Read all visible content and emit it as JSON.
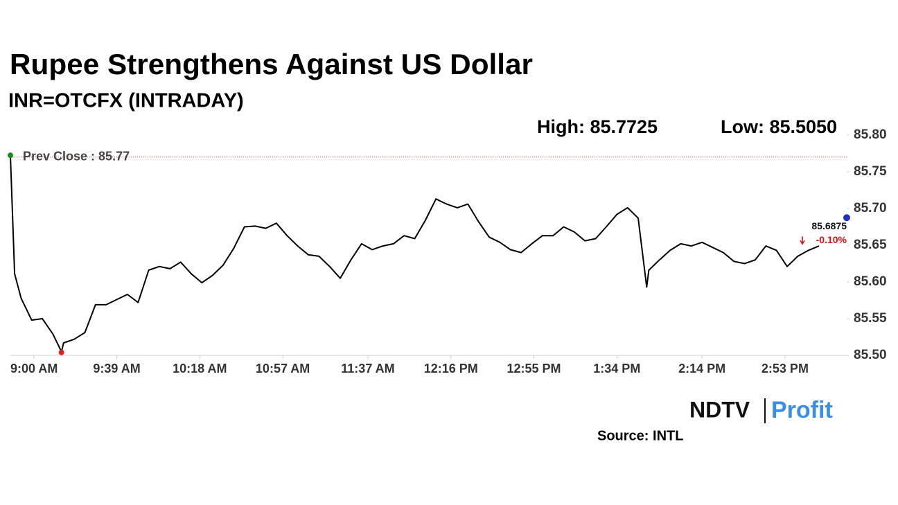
{
  "chart_data": {
    "type": "line",
    "title": "Rupee Strengthens Against US Dollar",
    "subtitle": "INR=OTCFX (INTRADAY)",
    "annotations": [
      "High: 85.7725",
      "Low: 85.5050"
    ],
    "prev_close": 85.77,
    "prev_close_label": "Prev Close : 85.77",
    "last_value": 85.6875,
    "last_label": "85.6875",
    "change_label": "-0.10%",
    "source": "Source: INTL",
    "logo": [
      "NDTV",
      "Profit"
    ],
    "color": "#000000",
    "x": [
      "8:49 AM",
      "8:51 AM",
      "8:54 AM",
      "8:59 AM",
      "9:04 AM",
      "9:09 AM",
      "9:13 AM",
      "9:14 AM",
      "9:19 AM",
      "9:24 AM",
      "9:29 AM",
      "9:34 AM",
      "9:39 AM",
      "9:44 AM",
      "9:49 AM",
      "9:54 AM",
      "9:59 AM",
      "10:04 AM",
      "10:09 AM",
      "10:14 AM",
      "10:19 AM",
      "10:24 AM",
      "10:29 AM",
      "10:34 AM",
      "10:39 AM",
      "10:44 AM",
      "10:49 AM",
      "10:54 AM",
      "10:59 AM",
      "11:04 AM",
      "11:09 AM",
      "11:14 AM",
      "11:19 AM",
      "11:24 AM",
      "11:29 AM",
      "11:34 AM",
      "11:39 AM",
      "11:44 AM",
      "11:49 AM",
      "11:54 AM",
      "11:59 AM",
      "12:04 PM",
      "12:09 PM",
      "12:14 PM",
      "12:19 PM",
      "12:24 PM",
      "12:29 PM",
      "12:34 PM",
      "12:39 PM",
      "12:44 PM",
      "12:49 PM",
      "12:54 PM",
      "12:59 PM",
      "1:04 PM",
      "1:09 PM",
      "1:14 PM",
      "1:19 PM",
      "1:24 PM",
      "1:29 PM",
      "1:34 PM",
      "1:39 PM",
      "1:44 PM",
      "1:48 PM",
      "1:49 PM",
      "1:54 PM",
      "1:59 PM",
      "2:04 PM",
      "2:09 PM",
      "2:14 PM",
      "2:19 PM",
      "2:24 PM",
      "2:29 PM",
      "2:34 PM",
      "2:39 PM",
      "2:44 PM",
      "2:49 PM",
      "2:54 PM",
      "2:59 PM",
      "3:04 PM",
      "3:09 PM"
    ],
    "values": [
      85.7725,
      85.611,
      85.578,
      85.548,
      85.55,
      85.529,
      85.505,
      85.517,
      85.522,
      85.531,
      85.569,
      85.569,
      85.576,
      85.583,
      85.572,
      85.616,
      85.621,
      85.618,
      85.627,
      85.611,
      85.599,
      85.609,
      85.623,
      85.646,
      85.675,
      85.676,
      85.673,
      85.68,
      85.663,
      85.649,
      85.637,
      85.635,
      85.621,
      85.605,
      85.63,
      85.652,
      85.644,
      85.649,
      85.652,
      85.663,
      85.659,
      85.684,
      85.713,
      85.706,
      85.701,
      85.706,
      85.682,
      85.661,
      85.654,
      85.644,
      85.64,
      85.652,
      85.663,
      85.663,
      85.675,
      85.668,
      85.656,
      85.659,
      85.675,
      85.692,
      85.701,
      85.687,
      85.593,
      85.616,
      85.63,
      85.643,
      85.652,
      85.649,
      85.654,
      85.647,
      85.64,
      85.628,
      85.625,
      85.63,
      85.649,
      85.643,
      85.621,
      85.635,
      85.643,
      85.649
    ],
    "xlim": [
      "8:49 AM",
      "3:22 PM"
    ],
    "xticks": [
      "9:00 AM",
      "9:39 AM",
      "10:18 AM",
      "10:57 AM",
      "11:37 AM",
      "12:16 PM",
      "12:55 PM",
      "1:34 PM",
      "2:14 PM",
      "2:53 PM"
    ],
    "ylim": [
      85.5,
      85.8
    ],
    "yticks": [
      {
        "value": 85.5,
        "label": "85.50"
      },
      {
        "value": 85.55,
        "label": "85.55"
      },
      {
        "value": 85.6,
        "label": "85.60"
      },
      {
        "value": 85.65,
        "label": "85.65"
      },
      {
        "value": 85.7,
        "label": "85.70"
      },
      {
        "value": 85.75,
        "label": "85.75"
      },
      {
        "value": 85.8,
        "label": "85.80"
      }
    ]
  }
}
